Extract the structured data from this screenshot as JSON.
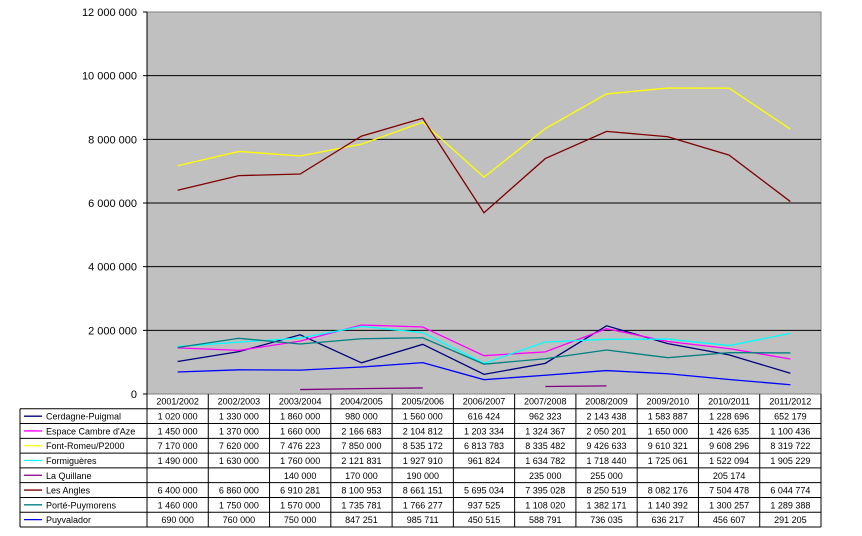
{
  "chart_data": {
    "type": "line",
    "categories": [
      "2001/2002",
      "2002/2003",
      "2003/2004",
      "2004/2005",
      "2005/2006",
      "2006/2007",
      "2007/2008",
      "2008/2009",
      "2009/2010",
      "2010/2011",
      "2011/2012"
    ],
    "y_ticks": [
      "0",
      "2 000 000",
      "4 000 000",
      "6 000 000",
      "8 000 000",
      "10 000 000",
      "12 000 000"
    ],
    "ylim": [
      0,
      12000000
    ],
    "grid": true,
    "legend": "data-table-below",
    "plot_background": "#c0c0c0",
    "series": [
      {
        "name": "Cerdagne-Puigmal",
        "color": "#000080",
        "values": [
          1020000,
          1330000,
          1860000,
          980000,
          1560000,
          616424,
          962323,
          2143438,
          1583887,
          1228696,
          652179
        ],
        "labels": [
          "1 020 000",
          "1 330 000",
          "1 860 000",
          "980 000",
          "1 560 000",
          "616 424",
          "962 323",
          "2 143 438",
          "1 583 887",
          "1 228 696",
          "652 179"
        ]
      },
      {
        "name": "Espace Cambre d'Aze",
        "color": "#ff00ff",
        "values": [
          1450000,
          1370000,
          1660000,
          2166683,
          2104812,
          1203334,
          1324367,
          2050201,
          1650000,
          1426635,
          1100436
        ],
        "labels": [
          "1 450 000",
          "1 370 000",
          "1 660 000",
          "2 166 683",
          "2 104 812",
          "1 203 334",
          "1 324 367",
          "2 050 201",
          "1 650 000",
          "1 426 635",
          "1 100 436"
        ]
      },
      {
        "name": "Font-Romeu/P2000",
        "color": "#ffff00",
        "values": [
          7170000,
          7620000,
          7476223,
          7850000,
          8535172,
          6813783,
          8335482,
          9426633,
          9610321,
          9608296,
          8319722
        ],
        "labels": [
          "7 170 000",
          "7 620 000",
          "7 476 223",
          "7 850 000",
          "8 535 172",
          "6 813 783",
          "8 335 482",
          "9 426 633",
          "9 610 321",
          "9 608 296",
          "8 319 722"
        ]
      },
      {
        "name": "Formiguères",
        "color": "#00ffff",
        "values": [
          1490000,
          1630000,
          1760000,
          2121831,
          1927910,
          961824,
          1634782,
          1718440,
          1725061,
          1522094,
          1905229
        ],
        "labels": [
          "1 490 000",
          "1 630 000",
          "1 760 000",
          "2 121 831",
          "1 927 910",
          "961 824",
          "1 634 782",
          "1 718 440",
          "1 725 061",
          "1 522 094",
          "1 905 229"
        ]
      },
      {
        "name": "La Quillane",
        "color": "#800080",
        "values": [
          null,
          null,
          140000,
          170000,
          190000,
          null,
          235000,
          255000,
          null,
          205174,
          null
        ],
        "labels": [
          "",
          "",
          "140 000",
          "170 000",
          "190 000",
          "",
          "235 000",
          "255 000",
          "",
          "205 174",
          ""
        ]
      },
      {
        "name": "Les Angles",
        "color": "#800000",
        "values": [
          6400000,
          6860000,
          6910281,
          8100953,
          8661151,
          5695034,
          7395028,
          8250519,
          8082176,
          7504478,
          6044774
        ],
        "labels": [
          "6 400 000",
          "6 860 000",
          "6 910 281",
          "8 100 953",
          "8 661 151",
          "5 695 034",
          "7 395 028",
          "8 250 519",
          "8 082 176",
          "7 504 478",
          "6 044 774"
        ]
      },
      {
        "name": "Porté-Puymorens",
        "color": "#008080",
        "values": [
          1460000,
          1750000,
          1570000,
          1735781,
          1766277,
          937525,
          1108020,
          1382171,
          1140392,
          1300257,
          1289388
        ],
        "labels": [
          "1 460 000",
          "1 750 000",
          "1 570 000",
          "1 735 781",
          "1 766 277",
          "937 525",
          "1 108 020",
          "1 382 171",
          "1 140 392",
          "1 300 257",
          "1 289 388"
        ]
      },
      {
        "name": "Puyvalador",
        "color": "#0000ff",
        "values": [
          690000,
          760000,
          750000,
          847251,
          985711,
          450515,
          588791,
          736035,
          636217,
          456607,
          291205
        ],
        "labels": [
          "690 000",
          "760 000",
          "750 000",
          "847 251",
          "985 711",
          "450 515",
          "588 791",
          "736 035",
          "636 217",
          "456 607",
          "291 205"
        ]
      }
    ]
  }
}
